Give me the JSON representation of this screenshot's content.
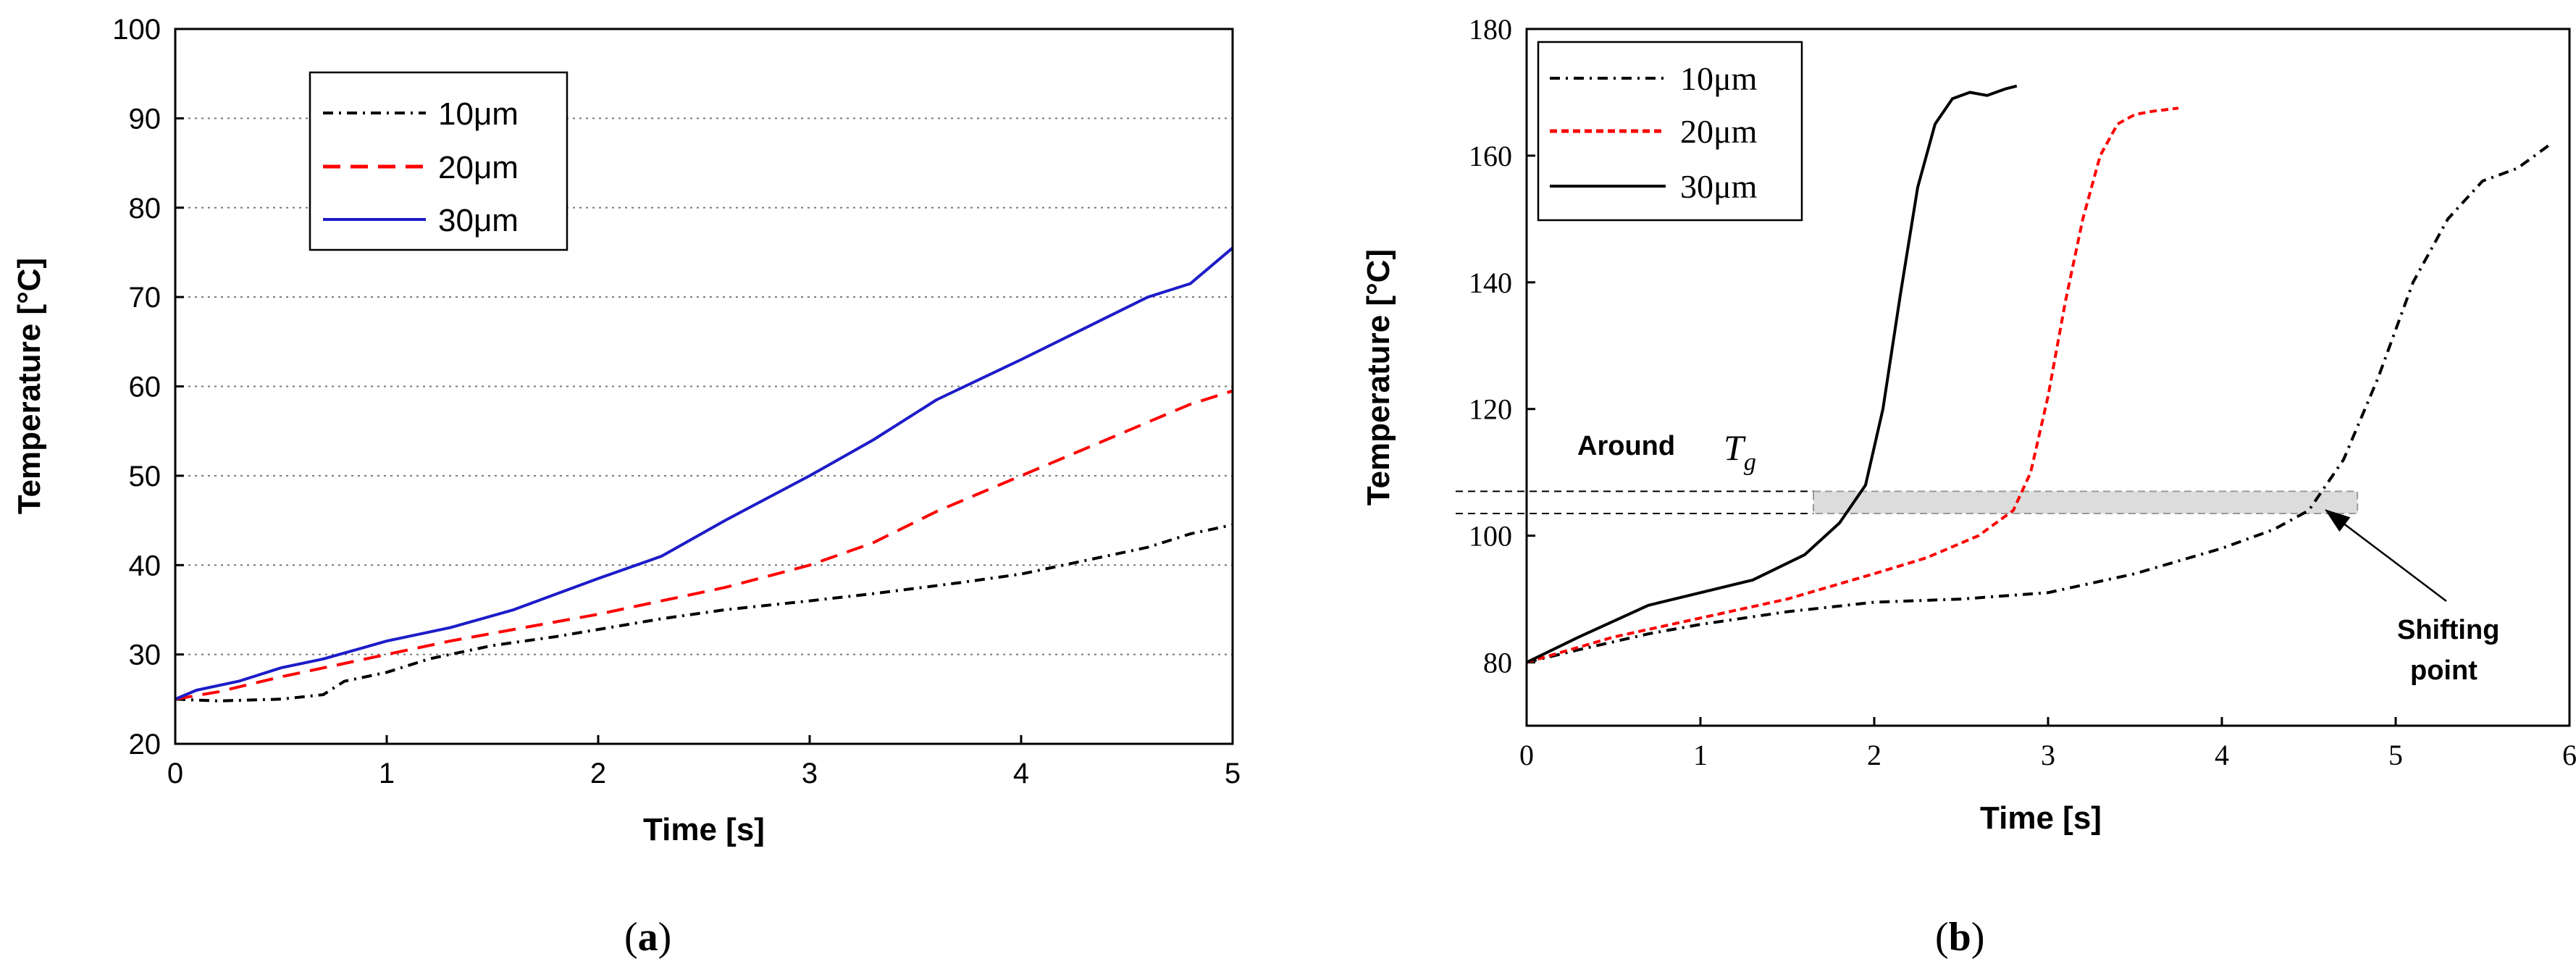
{
  "chart_data": [
    {
      "type": "line",
      "panel_label": "a",
      "xlabel": "Time [s]",
      "ylabel": "Temperature [°C]",
      "xlim": [
        0,
        5
      ],
      "ylim": [
        20,
        100
      ],
      "xticks": [
        0,
        1,
        2,
        3,
        4,
        5
      ],
      "yticks": [
        20,
        30,
        40,
        50,
        60,
        70,
        80,
        90,
        100
      ],
      "grid": "horizontal dotted",
      "legend_position": "top-left",
      "series": [
        {
          "name": "10μm",
          "color": "#000000",
          "style": "dash-dot",
          "x": [
            0,
            0.2,
            0.5,
            0.7,
            0.8,
            1.0,
            1.2,
            1.5,
            1.8,
            2.0,
            2.3,
            2.6,
            3.0,
            3.3,
            3.7,
            4.0,
            4.3,
            4.6,
            4.8,
            5.0
          ],
          "y": [
            25,
            24.8,
            25,
            25.5,
            27,
            28,
            29.5,
            31,
            32,
            32.8,
            34,
            35,
            36,
            36.8,
            38,
            39,
            40.5,
            42,
            43.5,
            44.5
          ]
        },
        {
          "name": "20μm",
          "color": "#ff0000",
          "style": "dashed",
          "x": [
            0,
            0.2,
            0.5,
            0.8,
            1.0,
            1.3,
            1.6,
            2.0,
            2.3,
            2.6,
            3.0,
            3.3,
            3.6,
            4.0,
            4.3,
            4.6,
            4.8,
            5.0
          ],
          "y": [
            25,
            25.8,
            27.5,
            29,
            30,
            31.5,
            32.8,
            34.5,
            36,
            37.5,
            40,
            42.5,
            46,
            50,
            53,
            56,
            58,
            59.5
          ]
        },
        {
          "name": "30μm",
          "color": "#1c1cc8",
          "style": "solid",
          "x": [
            0,
            0.1,
            0.3,
            0.5,
            0.7,
            1.0,
            1.3,
            1.6,
            2.0,
            2.3,
            2.6,
            3.0,
            3.3,
            3.6,
            4.0,
            4.3,
            4.6,
            4.8,
            5.0
          ],
          "y": [
            25,
            26,
            27,
            28.5,
            29.5,
            31.5,
            33,
            35,
            38.5,
            41,
            45,
            50,
            54,
            58.5,
            63,
            66.5,
            70,
            71.5,
            75.5
          ]
        }
      ]
    },
    {
      "type": "line",
      "panel_label": "b",
      "xlabel": "Time [s]",
      "ylabel": "Temperature [°C]",
      "xlim": [
        0,
        6
      ],
      "ylim": [
        70,
        180
      ],
      "xticks": [
        0,
        1,
        2,
        3,
        4,
        5,
        6
      ],
      "yticks": [
        80,
        100,
        120,
        140,
        160,
        180
      ],
      "grid": "none",
      "legend_position": "top-left",
      "series": [
        {
          "name": "10μm",
          "color": "#000000",
          "style": "dash-dot",
          "x": [
            0,
            0.3,
            0.7,
            1.0,
            1.5,
            2.0,
            2.5,
            3.0,
            3.5,
            4.0,
            4.3,
            4.5,
            4.7,
            4.9,
            5.1,
            5.3,
            5.5,
            5.7,
            5.9
          ],
          "y": [
            80,
            82,
            84.5,
            86,
            88,
            89.5,
            90,
            91,
            94,
            98,
            101,
            104,
            112,
            125,
            140,
            150,
            156,
            158,
            162
          ]
        },
        {
          "name": "20μm",
          "color": "#ff0000",
          "style": "dashed",
          "x": [
            0,
            0.5,
            1.0,
            1.5,
            2.0,
            2.3,
            2.6,
            2.8,
            2.9,
            3.0,
            3.1,
            3.2,
            3.3,
            3.4,
            3.5,
            3.6,
            3.75
          ],
          "y": [
            80,
            84,
            87,
            90,
            94,
            96.5,
            100,
            104,
            110,
            122,
            137,
            150,
            160,
            165,
            166.5,
            167,
            167.5
          ]
        },
        {
          "name": "30μm",
          "color": "#000000",
          "style": "solid",
          "x": [
            0,
            0.3,
            0.7,
            1.0,
            1.3,
            1.6,
            1.8,
            1.95,
            2.05,
            2.15,
            2.25,
            2.35,
            2.45,
            2.55,
            2.65,
            2.75,
            2.82
          ],
          "y": [
            80,
            84,
            89,
            91,
            93,
            97,
            102,
            108,
            120,
            138,
            155,
            165,
            169,
            170,
            169.5,
            170.5,
            171
          ]
        }
      ],
      "annotations": {
        "around_prefix": "Around",
        "tg_symbol": "T",
        "tg_subscript": "g",
        "tg_band": [
          103.5,
          107
        ],
        "shifting_line1": "Shifting",
        "shifting_line2": "point"
      }
    }
  ]
}
